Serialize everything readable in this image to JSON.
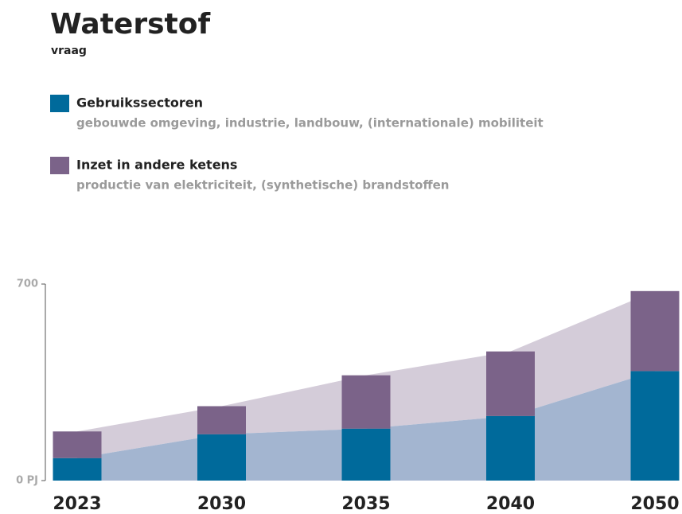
{
  "chart_data": {
    "type": "stacked-bar-area",
    "title": "Waterstof",
    "subtitle": "vraag",
    "categories": [
      "2023",
      "2030",
      "2035",
      "2040",
      "2050"
    ],
    "series": [
      {
        "name": "Gebruikssectoren",
        "description": "gebouwde omgeving, industrie, landbouw, (internationale) mobiliteit",
        "color": "#006a9b",
        "area_color": "#a3b5d0",
        "values": [
          80,
          165,
          185,
          230,
          390
        ]
      },
      {
        "name": "Inzet in andere ketens",
        "description": "productie van elektriciteit, (synthetische) brandstoffen",
        "color": "#7b6389",
        "area_color": "#d4ccd9",
        "values": [
          95,
          100,
          190,
          230,
          285
        ]
      }
    ],
    "ylim": [
      0,
      700
    ],
    "yticks": [
      {
        "value": 0,
        "label": "0 PJ"
      },
      700
    ]
  }
}
